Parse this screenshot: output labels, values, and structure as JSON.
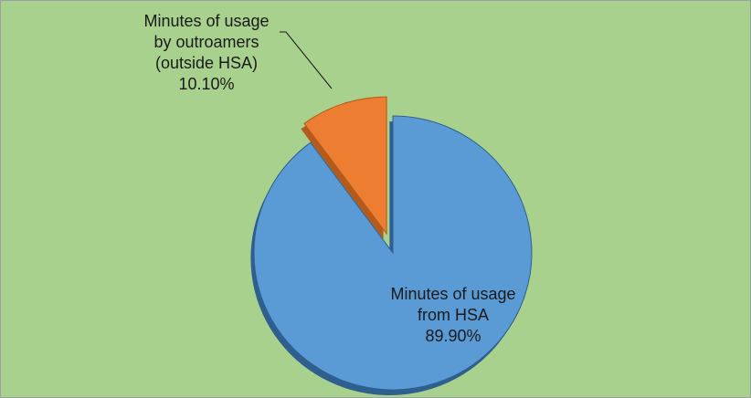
{
  "chart_data": {
    "type": "pie",
    "title": "",
    "three_d": true,
    "exploded_slice": "Minutes of usage by outroamers (outside HSA)",
    "legend": "none",
    "background_color": "#a9d18e",
    "slices": [
      {
        "label": "Minutes of usage by outroamers (outside HSA)",
        "label_lines": [
          "Minutes of usage",
          "by outroamers",
          "(outside HSA)"
        ],
        "value": 10.1,
        "value_label": "10.10%",
        "color": "#ed7d31",
        "side_color": "#b35a1c"
      },
      {
        "label": "Minutes of usage from HSA",
        "label_lines": [
          "Minutes of usage",
          "from HSA"
        ],
        "value": 89.9,
        "value_label": "89.90%",
        "color": "#5b9bd5",
        "side_color": "#2e5f8e"
      }
    ]
  }
}
